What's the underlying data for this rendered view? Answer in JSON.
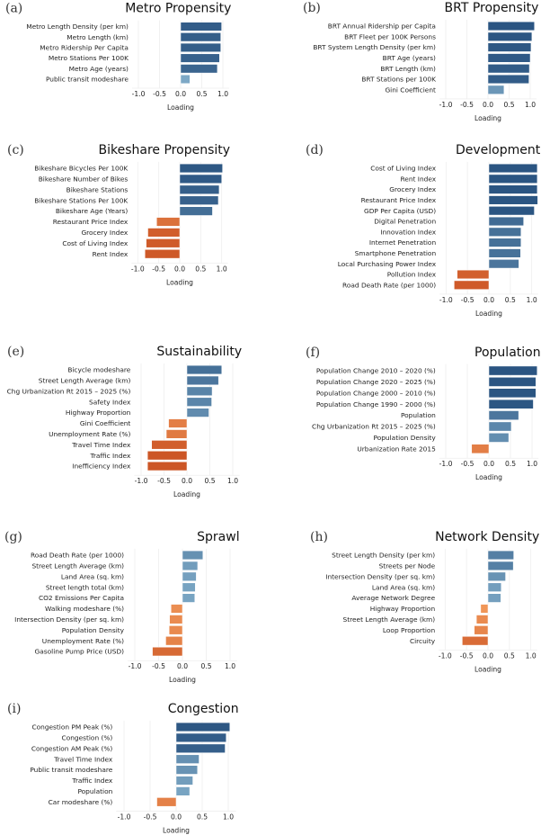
{
  "chart_data": [
    {
      "type": "bar",
      "orientation": "horizontal",
      "panel": "(a)",
      "title": "Metro Propensity",
      "xlabel": "Loading",
      "xlim": [
        -1.15,
        1.15
      ],
      "xticks": [
        "-1.0",
        "-0.5",
        "0.0",
        "0.5",
        "1.0"
      ],
      "xtick_values": [
        -1,
        -0.5,
        0,
        0.5,
        1
      ],
      "grid": true,
      "categories": [
        "Metro Length Density (per km)",
        "Metro Length (km)",
        "Metro Ridership Per Capita",
        "Metro Stations Per 100K",
        "Metro Age (years)",
        "Public transit modeshare"
      ],
      "values": [
        0.97,
        0.95,
        0.95,
        0.92,
        0.87,
        0.22
      ]
    },
    {
      "type": "bar",
      "orientation": "horizontal",
      "panel": "(b)",
      "title": "BRT Propensity",
      "xlabel": "Loading",
      "xlim": [
        -1.15,
        1.15
      ],
      "xticks": [
        "-1.0",
        "-0.5",
        "0.0",
        "0.5",
        "1.0"
      ],
      "xtick_values": [
        -1,
        -0.5,
        0,
        0.5,
        1
      ],
      "grid": true,
      "categories": [
        "BRT Annual Ridership per Capita",
        "BRT Fleet per 100K Persons",
        "BRT System Length Density (per km)",
        "BRT Age (years)",
        "BRT Length (km)",
        "BRT Stations per 100K",
        "Gini Coefficient"
      ],
      "values": [
        1.1,
        1.04,
        1.02,
        1.0,
        0.98,
        0.97,
        0.38
      ]
    },
    {
      "type": "bar",
      "orientation": "horizontal",
      "panel": "(c)",
      "title": "Bikeshare Propensity",
      "xlabel": "Loading",
      "xlim": [
        -1.15,
        1.15
      ],
      "xticks": [
        "-1.0",
        "-0.5",
        "0.0",
        "0.5",
        "1.0"
      ],
      "xtick_values": [
        -1,
        -0.5,
        0,
        0.5,
        1
      ],
      "grid": true,
      "categories": [
        "Bikeshare Bicycles Per 100K",
        "Bikeshare Number of Bikes",
        "Bikeshare Stations",
        "Bikeshare Stations Per 100K",
        "Bikeshare Age (Years)",
        "Restaurant Price Index",
        "Grocery Index",
        "Cost of Living Index",
        "Rent Index"
      ],
      "values": [
        1.02,
        1.0,
        0.94,
        0.92,
        0.78,
        -0.55,
        -0.76,
        -0.8,
        -0.83
      ]
    },
    {
      "type": "bar",
      "orientation": "horizontal",
      "panel": "(d)",
      "title": "Development",
      "xlabel": "Loading",
      "xlim": [
        -1.15,
        1.15
      ],
      "xticks": [
        "-1.0",
        "-0.5",
        "0.0",
        "0.5",
        "1.0"
      ],
      "xtick_values": [
        -1,
        -0.5,
        0,
        0.5,
        1
      ],
      "grid": true,
      "categories": [
        "Cost of Living Index",
        "Rent Index",
        "Grocery Index",
        "Restaurant Price Index",
        "GDP Per Capita (USD)",
        "Digital Penetration",
        "Innovation Index",
        "Internet Penetration",
        "Smartphone Penetration",
        "Local Purchasing Power Index",
        "Pollution Index",
        "Road Death Rate (per 1000)"
      ],
      "values": [
        1.13,
        1.13,
        1.13,
        1.14,
        1.06,
        0.81,
        0.75,
        0.75,
        0.74,
        0.7,
        -0.74,
        -0.81
      ]
    },
    {
      "type": "bar",
      "orientation": "horizontal",
      "panel": "(e)",
      "title": "Sustainability",
      "xlabel": "Loading",
      "xlim": [
        -1.15,
        1.15
      ],
      "xticks": [
        "-1.0",
        "-0.5",
        "0.0",
        "0.5",
        "1.0"
      ],
      "xtick_values": [
        -1,
        -0.5,
        0,
        0.5,
        1
      ],
      "grid": true,
      "categories": [
        "Bicycle modeshare",
        "Street Length Average (km)",
        "Chg Urbanization Rt 2015 – 2025 (%)",
        "Safety Index",
        "Highway Proportion",
        "Gini Coefficient",
        "Unemployment Rate (%)",
        "Travel Time Index",
        "Traffic Index",
        "Inefficiency Index"
      ],
      "values": [
        0.76,
        0.69,
        0.55,
        0.54,
        0.48,
        -0.4,
        -0.45,
        -0.77,
        -0.86,
        -0.86
      ]
    },
    {
      "type": "bar",
      "orientation": "horizontal",
      "panel": "(f)",
      "title": "Population",
      "xlabel": "Loading",
      "xlim": [
        -1.15,
        1.15
      ],
      "xticks": [
        "-1.0",
        "-0.5",
        "0.0",
        "0.5",
        "1.0"
      ],
      "xtick_values": [
        -1,
        -0.5,
        0,
        0.5,
        1
      ],
      "grid": true,
      "categories": [
        "Population Change 2010 – 2020 (%)",
        "Population Change 2020 – 2025 (%)",
        "Population Change 2000 – 2010 (%)",
        "Population Change 1990 – 2000 (%)",
        "Population",
        "Chg Urbanization Rt 2015 – 2025 (%)",
        "Population Density",
        "Urbanization Rate 2015"
      ],
      "values": [
        1.12,
        1.09,
        1.09,
        1.03,
        0.69,
        0.52,
        0.46,
        -0.4
      ]
    },
    {
      "type": "bar",
      "orientation": "horizontal",
      "panel": "(g)",
      "title": "Sprawl",
      "xlabel": "Loading",
      "xlim": [
        -1.15,
        1.15
      ],
      "xticks": [
        "-1.0",
        "-0.5",
        "0.0",
        "0.5",
        "1.0"
      ],
      "xtick_values": [
        -1,
        -0.5,
        0,
        0.5,
        1
      ],
      "grid": true,
      "categories": [
        "Road Death Rate (per 1000)",
        "Street Length Average (km)",
        "Land Area (sq. km)",
        "Street length total (km)",
        "CO2 Emissions Per Capita",
        "Walking modeshare (%)",
        "Intersection Density (per sq. km)",
        "Population Density",
        "Unemployment Rate (%)",
        "Gasoline Pump Price (USD)"
      ],
      "values": [
        0.43,
        0.32,
        0.29,
        0.27,
        0.26,
        -0.24,
        -0.27,
        -0.28,
        -0.35,
        -0.63
      ]
    },
    {
      "type": "bar",
      "orientation": "horizontal",
      "panel": "(h)",
      "title": "Network Density",
      "xlabel": "Loading",
      "xlim": [
        -1.15,
        1.15
      ],
      "xticks": [
        "-1.0",
        "-0.5",
        "0.0",
        "0.5",
        "1.0"
      ],
      "xtick_values": [
        -1,
        -0.5,
        0,
        0.5,
        1
      ],
      "grid": true,
      "categories": [
        "Street Length Density (per km)",
        "Streets per Node",
        "Intersection Density (per sq. km)",
        "Land Area (sq. km)",
        "Average Network Degree",
        "Highway Proportion",
        "Street Length Average (km)",
        "Loop Proportion",
        "Circuity"
      ],
      "values": [
        0.6,
        0.59,
        0.41,
        0.31,
        0.3,
        -0.17,
        -0.27,
        -0.32,
        -0.6
      ]
    },
    {
      "type": "bar",
      "orientation": "horizontal",
      "panel": "(i)",
      "title": "Congestion",
      "xlabel": "Loading",
      "xlim": [
        -1.15,
        1.15
      ],
      "xticks": [
        "-1.0",
        "-0.5",
        "0.0",
        "0.5",
        "1.0"
      ],
      "xtick_values": [
        -1,
        -0.5,
        0,
        0.5,
        1
      ],
      "grid": true,
      "categories": [
        "Congestion PM Peak (%)",
        "Congestion (%)",
        "Congestion AM Peak (%)",
        "Travel Time Index",
        "Public transit modeshare",
        "Traffic Index",
        "Population",
        "Car modeshare (%)"
      ],
      "values": [
        1.03,
        0.96,
        0.94,
        0.44,
        0.41,
        0.32,
        0.26,
        -0.37
      ]
    }
  ],
  "colors": {
    "positive_strong": "#2b5582",
    "positive_weak": "#9ecae1",
    "negative_weak": "#fdae6b",
    "negative_strong": "#c4471a"
  }
}
